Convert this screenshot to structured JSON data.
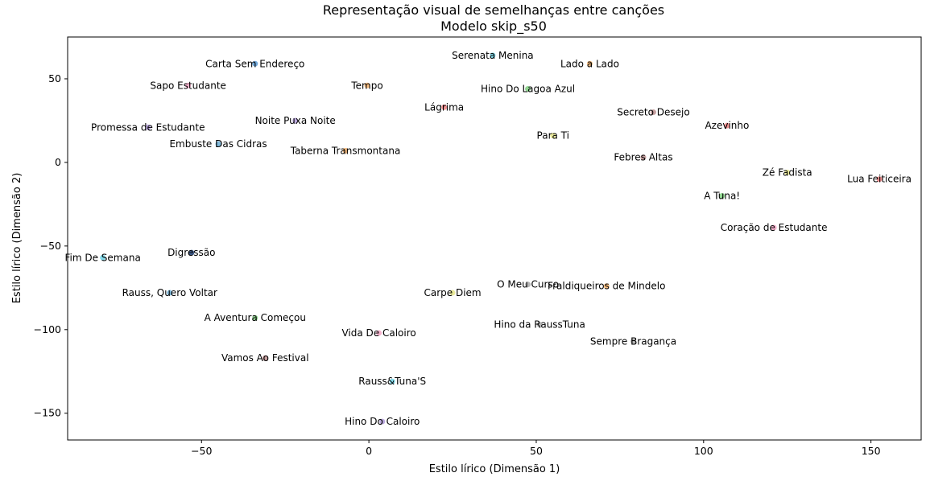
{
  "chart_data": {
    "type": "scatter",
    "title": "Representação visual de semelhanças entre canções",
    "subtitle": "Modelo skip_s50",
    "xlabel": "Estilo lírico (Dimensão 1)",
    "ylabel": "Estilo lírico (Dimensão 2)",
    "xlim": [
      -90,
      165
    ],
    "ylim": [
      -166,
      75
    ],
    "xticks": [
      -50,
      0,
      50,
      100,
      150
    ],
    "yticks": [
      -150,
      -100,
      -50,
      0,
      50
    ],
    "xtick_labels": [
      "−50",
      "0",
      "50",
      "100",
      "150"
    ],
    "ytick_labels": [
      "−150",
      "−100",
      "−50",
      "0",
      "50"
    ],
    "grid": false,
    "points": [
      {
        "label": "Carta Sem Endereço",
        "x": -34,
        "y": 59,
        "color": "#5b9bd5"
      },
      {
        "label": "Sapo Estudante",
        "x": -54,
        "y": 46,
        "color": "#f4a6c6"
      },
      {
        "label": "Tempo",
        "x": -0.5,
        "y": 46,
        "color": "#f6b26b"
      },
      {
        "label": "Serenata Menina",
        "x": 37,
        "y": 64,
        "color": "#6fd3e6"
      },
      {
        "label": "Lado a Lado",
        "x": 66,
        "y": 59,
        "color": "#f6b26b"
      },
      {
        "label": "Hino Do Lagoa Azul",
        "x": 47.5,
        "y": 44,
        "color": "#7fcf7f"
      },
      {
        "label": "Lágrima",
        "x": 22.5,
        "y": 33,
        "color": "#f08080"
      },
      {
        "label": "Noite Puxa Noite",
        "x": -22,
        "y": 25,
        "color": "#b19cd9"
      },
      {
        "label": "Promessa de Estudante",
        "x": -66,
        "y": 21,
        "color": "#b19cd9"
      },
      {
        "label": "Embuste Das Cidras",
        "x": -45,
        "y": 11,
        "color": "#6baed6"
      },
      {
        "label": "Taberna Transmontana",
        "x": -7,
        "y": 7,
        "color": "#f6b26b"
      },
      {
        "label": "Secreto Desejo",
        "x": 85,
        "y": 30,
        "color": "#bc8f8f"
      },
      {
        "label": "Azevinho",
        "x": 107,
        "y": 22,
        "color": "#f08080"
      },
      {
        "label": "Para Ti",
        "x": 55,
        "y": 16,
        "color": "#e6e68a"
      },
      {
        "label": "Febres Altas",
        "x": 82,
        "y": 3,
        "color": "#bc8f8f"
      },
      {
        "label": "Zé Fadista",
        "x": 125,
        "y": -6,
        "color": "#e6e68a"
      },
      {
        "label": "Lua Feiticeira",
        "x": 152.5,
        "y": -10,
        "color": "#f08080"
      },
      {
        "label": "A Tuna!",
        "x": 105.5,
        "y": -20,
        "color": "#7fcf7f"
      },
      {
        "label": "Coração de Estudante",
        "x": 121,
        "y": -39,
        "color": "#f4a6c6"
      },
      {
        "label": "Digressão",
        "x": -53,
        "y": -54,
        "color": "#1f3f77"
      },
      {
        "label": "Fim De Semana",
        "x": -79.5,
        "y": -57,
        "color": "#6fd3e6"
      },
      {
        "label": "O Meu Curso",
        "x": 47.5,
        "y": -73,
        "color": "#a9a9a9"
      },
      {
        "label": "Fraldiqueiros de Mindelo",
        "x": 71,
        "y": -74,
        "color": "#f6b26b"
      },
      {
        "label": "Rauss, Quero Voltar",
        "x": -59.5,
        "y": -78,
        "color": "#6baed6"
      },
      {
        "label": "Carpe Diem",
        "x": 25,
        "y": -78,
        "color": "#e6e68a"
      },
      {
        "label": "A Aventura Começou",
        "x": -34,
        "y": -93,
        "color": "#7fcf7f"
      },
      {
        "label": "Hino da RaussTuna",
        "x": 51,
        "y": -97,
        "color": "#a9a9a9"
      },
      {
        "label": "Vida De Caloiro",
        "x": 3,
        "y": -102,
        "color": "#f4a6c6"
      },
      {
        "label": "Sempre Bragança",
        "x": 79,
        "y": -107,
        "color": "#a9a9a9"
      },
      {
        "label": "Vamos Ao Festival",
        "x": -31,
        "y": -117,
        "color": "#bc8f8f"
      },
      {
        "label": "Rauss&Tuna'S",
        "x": 7,
        "y": -131,
        "color": "#6fd3e6"
      },
      {
        "label": "Hino Do Caloiro",
        "x": 4,
        "y": -155,
        "color": "#b19cd9"
      }
    ]
  }
}
